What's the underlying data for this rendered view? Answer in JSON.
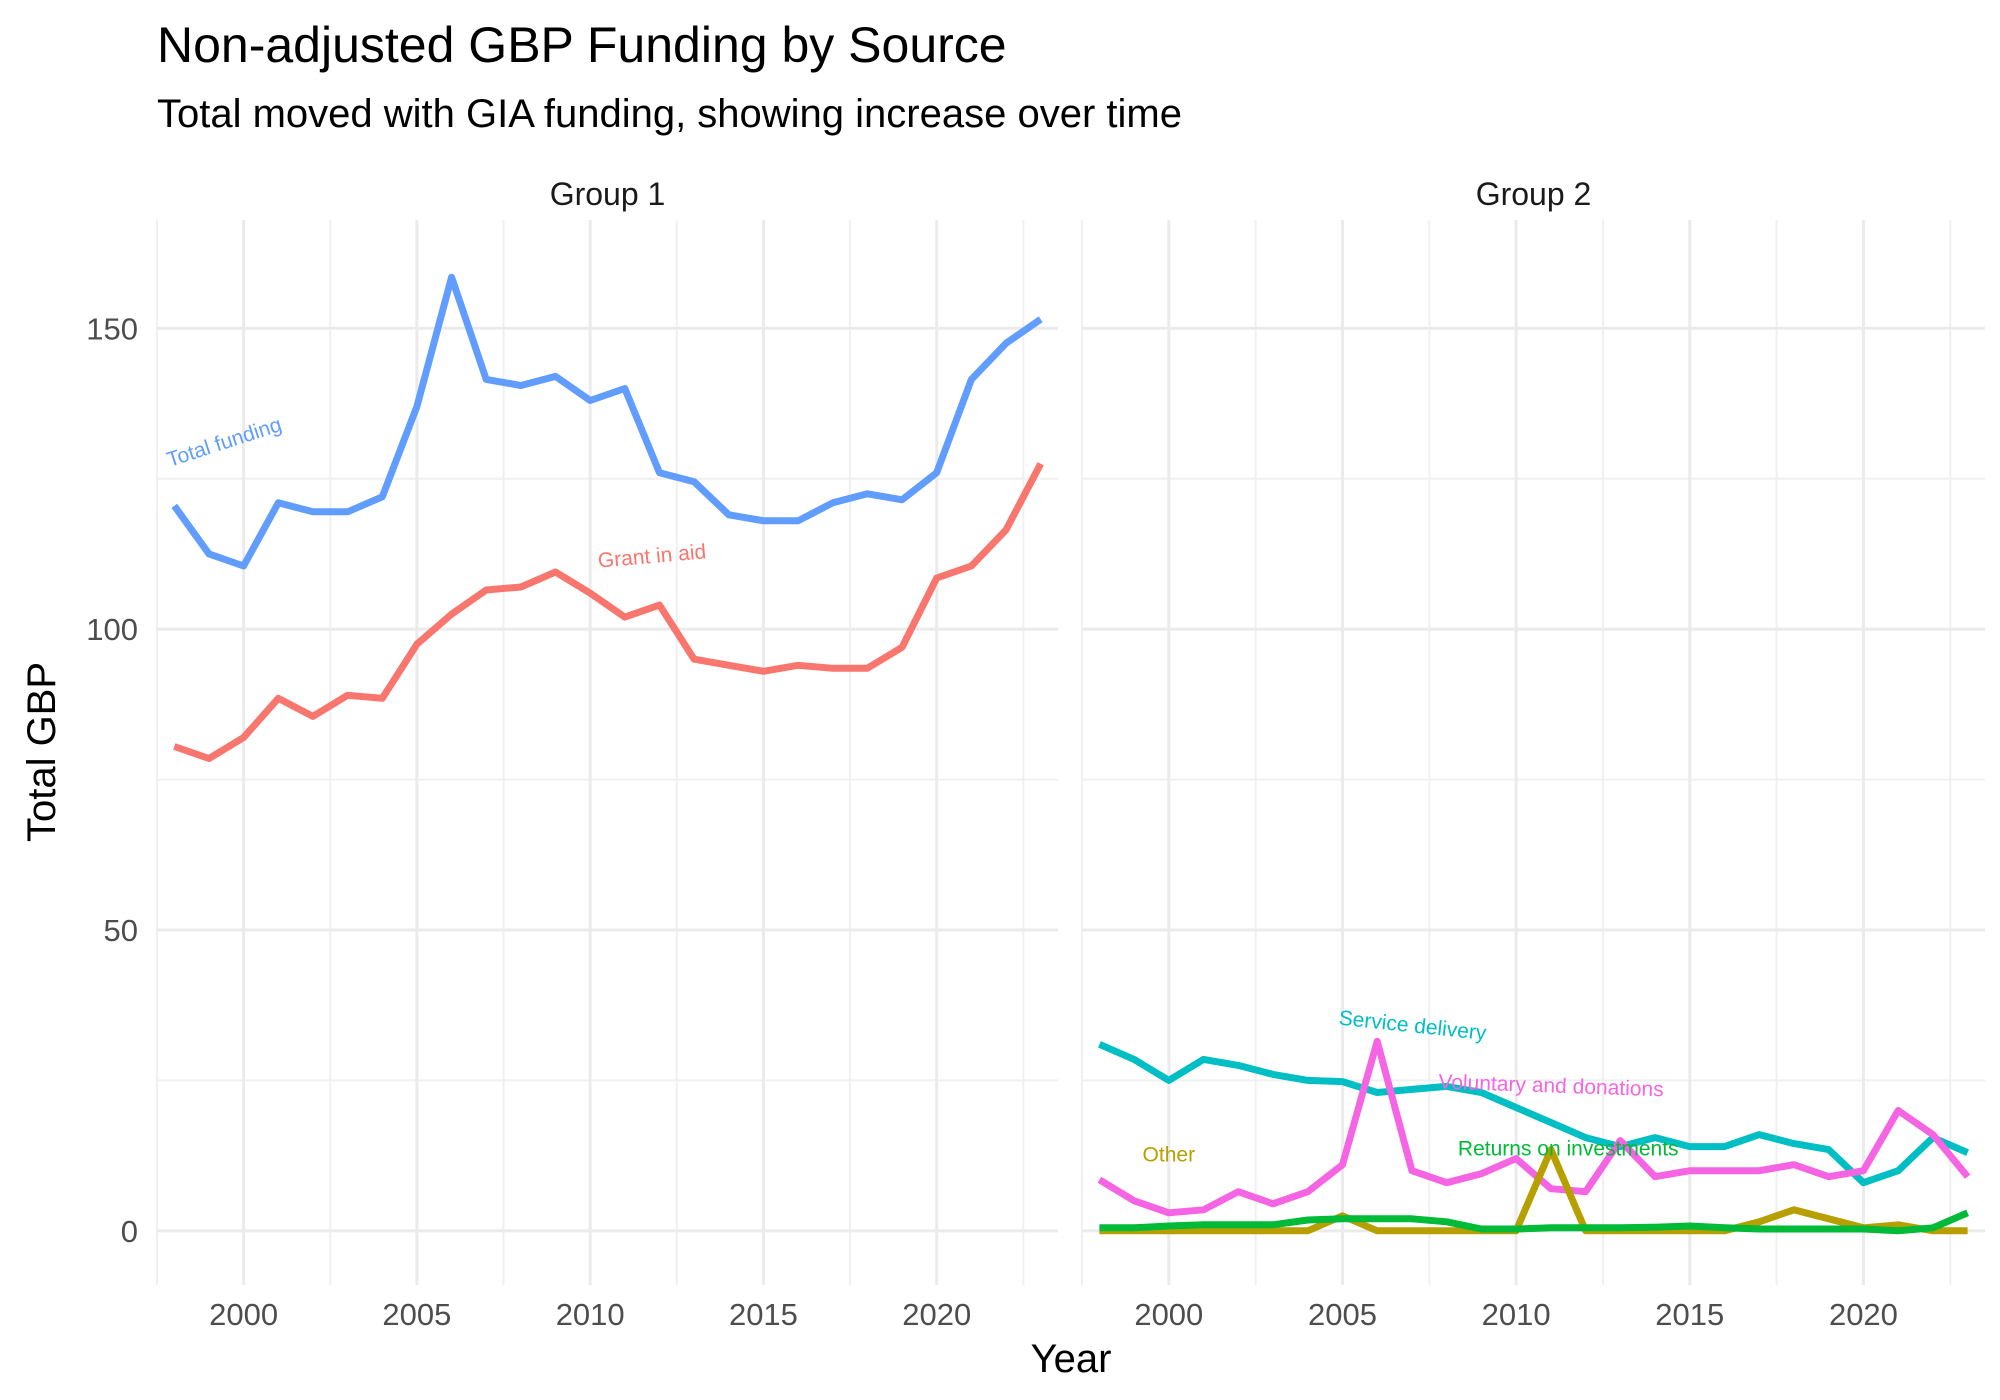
{
  "chart_data": {
    "type": "line",
    "title": "Non-adjusted GBP Funding by Source",
    "subtitle": "Total moved with GIA funding, showing increase over time",
    "xlabel": "Year",
    "ylabel": "Total GBP",
    "xlim": [
      1997.5,
      2023.5
    ],
    "ylim": [
      -9,
      168
    ],
    "x_ticks": [
      "2000",
      "2005",
      "2010",
      "2015",
      "2020"
    ],
    "y_ticks": [
      "0",
      "50",
      "100",
      "150"
    ],
    "grid": true,
    "legend": "none (direct labels)",
    "x": [
      1998,
      1999,
      2000,
      2001,
      2002,
      2003,
      2004,
      2005,
      2006,
      2007,
      2008,
      2009,
      2010,
      2011,
      2012,
      2013,
      2014,
      2015,
      2016,
      2017,
      2018,
      2019,
      2020,
      2021,
      2022,
      2023
    ],
    "panels": [
      {
        "name": "Group 1",
        "series": [
          {
            "name": "Total funding",
            "color": "#619CFF",
            "values": [
              120.5,
              112.5,
              110.5,
              121,
              119.5,
              119.5,
              122,
              137,
              158.5,
              141.5,
              140.5,
              142,
              138,
              140,
              126,
              124.5,
              119,
              118,
              118,
              121,
              122.5,
              121.5,
              126,
              141.5,
              147.5,
              151.5
            ]
          },
          {
            "name": "Grant in aid",
            "color": "#F8766D",
            "values": [
              80.5,
              78.5,
              82,
              88.5,
              85.5,
              89,
              88.5,
              97.5,
              102.5,
              106.5,
              107,
              109.5,
              106,
              102,
              104,
              95,
              94,
              93,
              94,
              93.5,
              93.5,
              97,
              108.5,
              110.5,
              116.5,
              127.5
            ]
          }
        ]
      },
      {
        "name": "Group 2",
        "series": [
          {
            "name": "Service delivery",
            "color": "#00BFC4",
            "values": [
              31,
              28.5,
              25,
              28.5,
              27.5,
              26,
              25,
              24.8,
              23,
              23.5,
              24,
              23,
              20.5,
              18,
              15.5,
              14,
              15.5,
              14,
              14,
              16,
              14.5,
              13.5,
              8,
              10,
              15.5,
              13
            ]
          },
          {
            "name": "Voluntary and donations",
            "color": "#F564E3",
            "values": [
              8.5,
              5,
              3,
              3.5,
              6.5,
              4.5,
              6.5,
              11,
              31.5,
              10,
              8,
              9.5,
              12,
              7,
              6.5,
              15,
              9,
              10,
              10,
              10,
              11,
              9,
              10,
              20,
              16,
              9
            ]
          },
          {
            "name": "Other",
            "color": "#B79F00",
            "values": [
              0,
              0,
              0,
              0,
              0,
              0,
              0,
              2.5,
              0,
              0,
              0,
              0,
              0,
              13.5,
              0,
              0,
              0,
              0,
              0,
              1.5,
              3.5,
              2,
              0.5,
              1,
              0,
              0
            ]
          },
          {
            "name": "Returns on investments",
            "color": "#00BA38",
            "values": [
              0.5,
              0.5,
              0.8,
              1,
              1,
              1,
              1.8,
              2,
              2,
              2,
              1.5,
              0.3,
              0.3,
              0.5,
              0.5,
              0.5,
              0.6,
              0.8,
              0.5,
              0.3,
              0.3,
              0.3,
              0.3,
              0,
              0.5,
              3
            ]
          }
        ]
      }
    ]
  }
}
